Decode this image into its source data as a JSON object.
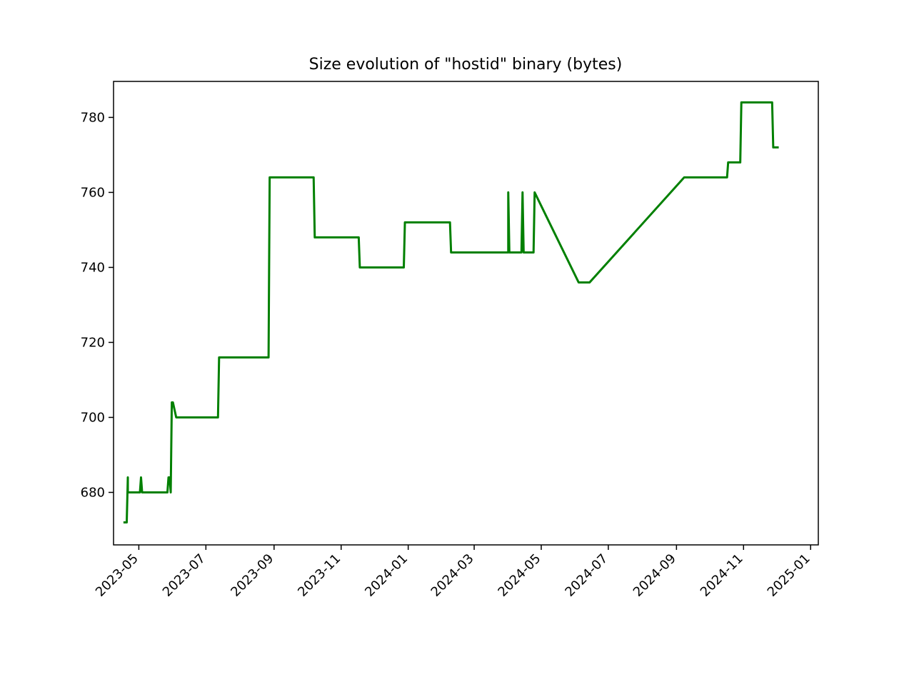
{
  "chart_data": {
    "type": "line",
    "title": "Size evolution of \"hostid\" binary (bytes)",
    "xlabel": "",
    "ylabel": "",
    "x_axis_type": "date",
    "xlim": [
      "2023-04-08",
      "2025-01-08"
    ],
    "ylim": [
      666,
      789.6
    ],
    "grid": false,
    "x_ticks": [
      "2023-05",
      "2023-07",
      "2023-09",
      "2023-11",
      "2024-01",
      "2024-03",
      "2024-05",
      "2024-07",
      "2024-09",
      "2024-11",
      "2025-01"
    ],
    "y_ticks": [
      680,
      700,
      720,
      740,
      760,
      780
    ],
    "series": [
      {
        "color": "#008000",
        "points": [
          [
            "2023-04-17",
            672
          ],
          [
            "2023-04-20",
            672
          ],
          [
            "2023-04-21",
            684
          ],
          [
            "2023-04-21",
            680
          ],
          [
            "2023-05-02",
            680
          ],
          [
            "2023-05-03",
            684
          ],
          [
            "2023-05-04",
            680
          ],
          [
            "2023-05-27",
            680
          ],
          [
            "2023-05-28",
            684
          ],
          [
            "2023-05-29",
            684
          ],
          [
            "2023-05-30",
            680
          ],
          [
            "2023-05-31",
            704
          ],
          [
            "2023-06-01",
            704
          ],
          [
            "2023-06-04",
            700
          ],
          [
            "2023-07-12",
            700
          ],
          [
            "2023-07-13",
            716
          ],
          [
            "2023-08-27",
            716
          ],
          [
            "2023-08-28",
            764
          ],
          [
            "2023-10-07",
            764
          ],
          [
            "2023-10-08",
            748
          ],
          [
            "2023-11-17",
            748
          ],
          [
            "2023-11-18",
            740
          ],
          [
            "2023-12-28",
            740
          ],
          [
            "2023-12-29",
            752
          ],
          [
            "2024-02-08",
            752
          ],
          [
            "2024-02-09",
            744
          ],
          [
            "2024-04-01",
            744
          ],
          [
            "2024-04-01",
            760
          ],
          [
            "2024-04-02",
            744
          ],
          [
            "2024-04-13",
            744
          ],
          [
            "2024-04-14",
            760
          ],
          [
            "2024-04-15",
            744
          ],
          [
            "2024-04-24",
            744
          ],
          [
            "2024-04-25",
            760
          ],
          [
            "2024-06-04",
            736
          ],
          [
            "2024-06-14",
            736
          ],
          [
            "2024-09-08",
            764
          ],
          [
            "2024-10-17",
            764
          ],
          [
            "2024-10-18",
            768
          ],
          [
            "2024-10-29",
            768
          ],
          [
            "2024-10-30",
            784
          ],
          [
            "2024-11-27",
            784
          ],
          [
            "2024-11-28",
            772
          ],
          [
            "2024-12-03",
            772
          ]
        ]
      }
    ]
  }
}
